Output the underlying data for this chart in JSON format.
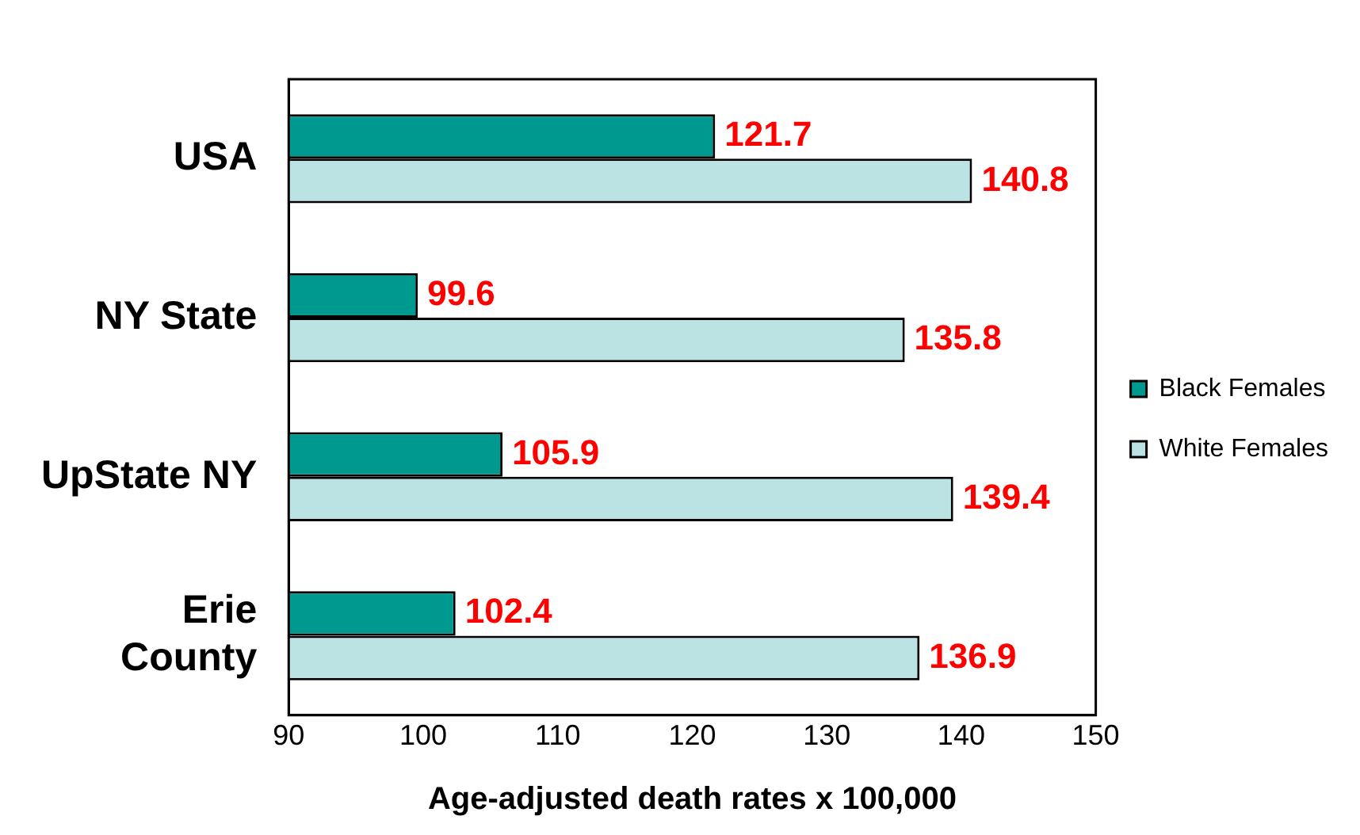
{
  "chart_data": {
    "type": "bar",
    "orientation": "horizontal",
    "xlabel": "Age-adjusted death rates x 100,000",
    "categories": [
      "USA",
      "NY State",
      "UpState NY",
      "Erie\nCounty"
    ],
    "series": [
      {
        "name": "Black Females",
        "color": "#009990",
        "values": [
          121.7,
          99.6,
          105.9,
          102.4
        ]
      },
      {
        "name": "White Females",
        "color": "#bce3e3",
        "values": [
          140.8,
          135.8,
          139.4,
          136.9
        ]
      }
    ],
    "xlim": [
      90,
      150
    ],
    "xticks": [
      90,
      100,
      110,
      120,
      130,
      140,
      150
    ],
    "grid": false,
    "legend": "right",
    "data_labels": true
  }
}
